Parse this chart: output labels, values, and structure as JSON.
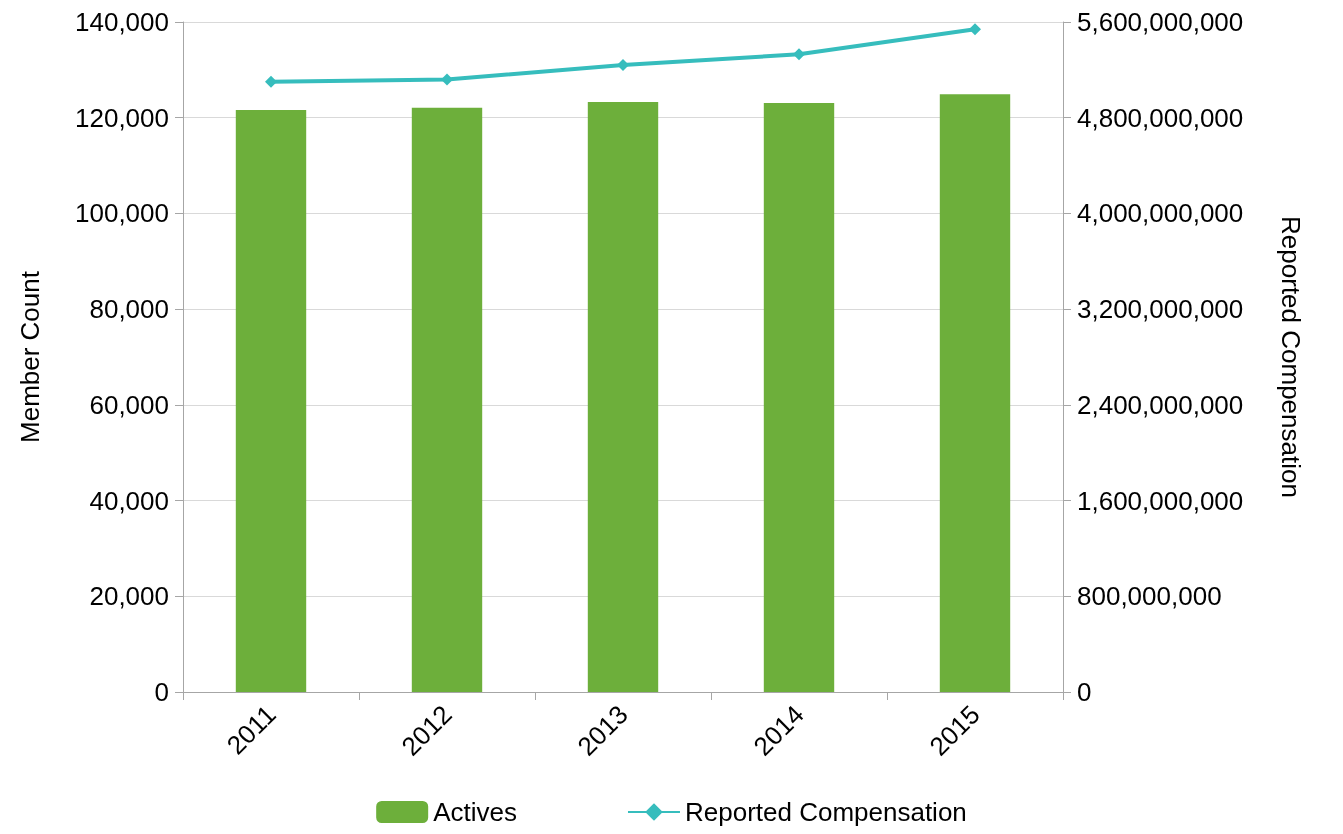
{
  "chart_data": {
    "type": "bar",
    "ylabel": "Member Count",
    "y2label": "Reported Compensation",
    "categories": [
      "2011",
      "2012",
      "2013",
      "2014",
      "2015"
    ],
    "series": [
      {
        "name": "Actives",
        "color": "#6daf3b",
        "values": [
          121600,
          122100,
          123300,
          123100,
          124900
        ]
      },
      {
        "name": "Reported Compensation",
        "type": "line",
        "axis": "y2",
        "color": "#36bdbd",
        "marker": "diamond",
        "values": [
          5100000000,
          5120000000,
          5240000000,
          5330000000,
          5540000000
        ]
      }
    ],
    "ylim": [
      0,
      140000
    ],
    "yticks": [
      {
        "value": 0,
        "label": "0"
      },
      {
        "value": 20000,
        "label": "20,000"
      },
      {
        "value": 40000,
        "label": "40,000"
      },
      {
        "value": 60000,
        "label": "60,000"
      },
      {
        "value": 80000,
        "label": "80,000"
      },
      {
        "value": 100000,
        "label": "100,000"
      },
      {
        "value": 120000,
        "label": "120,000"
      },
      {
        "value": 140000,
        "label": "140,000"
      }
    ],
    "y2lim": [
      0,
      5600000000
    ],
    "y2ticks": [
      {
        "value": 0,
        "label": "0"
      },
      {
        "value": 800000000,
        "label": "800,000,000"
      },
      {
        "value": 1600000000,
        "label": "1,600,000,000"
      },
      {
        "value": 2400000000,
        "label": "2,400,000,000"
      },
      {
        "value": 3200000000,
        "label": "3,200,000,000"
      },
      {
        "value": 4000000000,
        "label": "4,000,000,000"
      },
      {
        "value": 4800000000,
        "label": "4,800,000,000"
      },
      {
        "value": 5600000000,
        "label": "5,600,000,000"
      }
    ],
    "grid": "y",
    "legend": "bottom"
  }
}
